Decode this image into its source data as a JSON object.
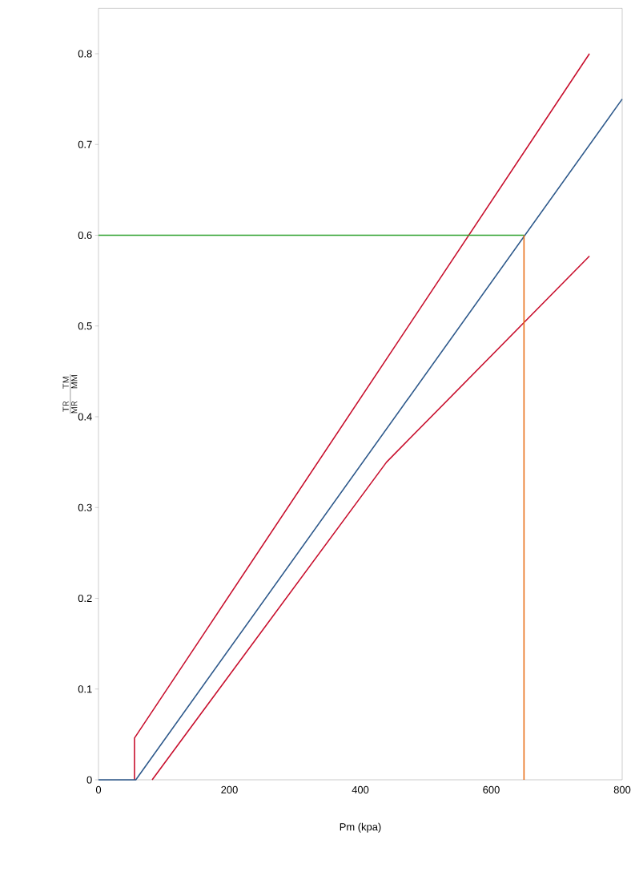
{
  "chart_data": {
    "type": "line",
    "xlabel": "Pm (kpa)",
    "ylabel": "\\frac{\\mathsf{TR}\\quad\\mathsf{TM}}{\\mathsf{MR}\\quad\\mathsf{MM}}",
    "xlim": [
      0,
      800
    ],
    "ylim": [
      0,
      0.85
    ],
    "xticks": [
      0,
      200,
      400,
      600,
      800
    ],
    "yticks": [
      0,
      0.1,
      0.2,
      0.3,
      0.4,
      0.5,
      0.6,
      0.7,
      0.8
    ],
    "grid": false,
    "marker": "none",
    "line_style": "solid",
    "series": [
      {
        "color": "#c8102e",
        "x": [
          55,
          55,
          750
        ],
        "values": [
          0,
          0.046,
          0.8
        ]
      },
      {
        "color": "#2f5a8c",
        "x": [
          0,
          57,
          800
        ],
        "values": [
          0,
          0,
          0.75
        ]
      },
      {
        "color": "#c8102e",
        "x": [
          82,
          440,
          750
        ],
        "values": [
          0,
          0.35,
          0.577
        ]
      },
      {
        "color": "#2ca02c",
        "x": [
          0,
          650
        ],
        "values": [
          0.6,
          0.6
        ]
      },
      {
        "color": "#e8701a",
        "x": [
          650,
          650
        ],
        "values": [
          0,
          0.6
        ]
      }
    ]
  }
}
